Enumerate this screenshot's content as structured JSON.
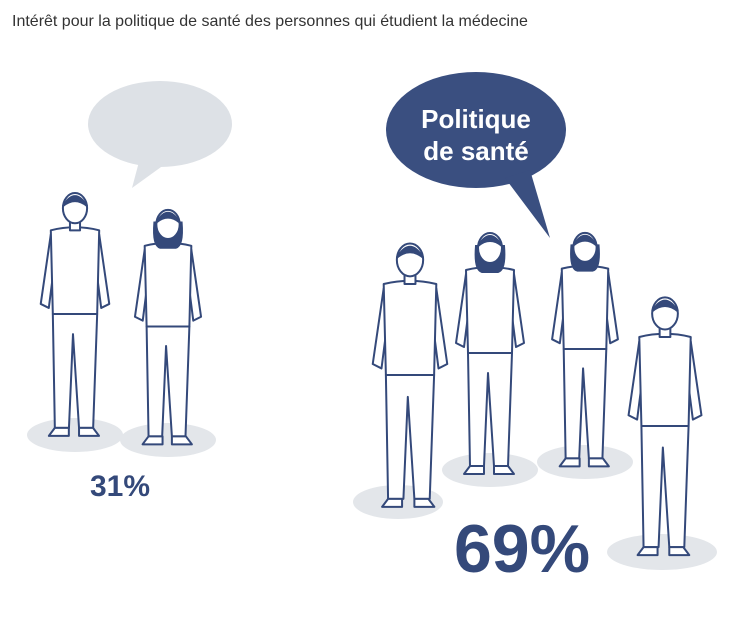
{
  "title": "Intérêt pour la politique de santé des personnes qui étudient la médecine",
  "groups": [
    {
      "label": "31%"
    },
    {
      "label": "69%",
      "bubble": [
        "Politique",
        "de santé"
      ]
    }
  ]
}
